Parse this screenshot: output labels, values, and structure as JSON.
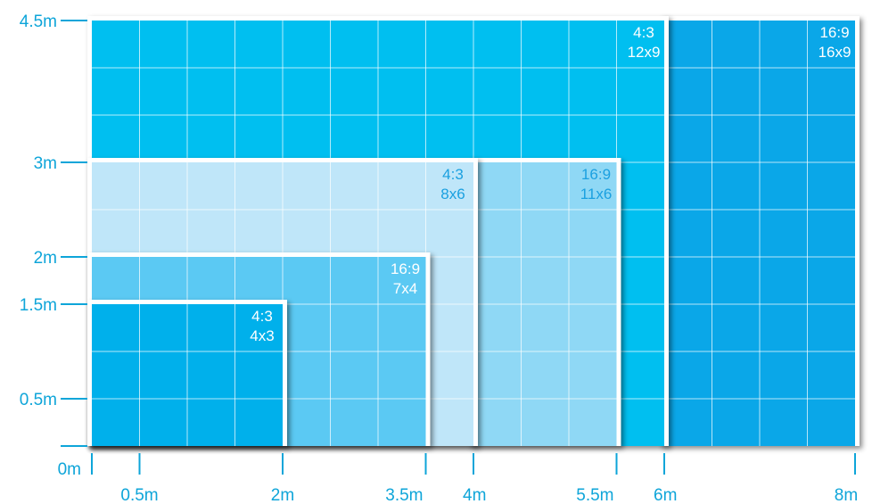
{
  "colors": {
    "axis": "#0ea5d9",
    "label_on_dark": "#ffffff",
    "label_on_light": "#1ba0e0",
    "grid": "#ffffff",
    "frame": "#ffffff"
  },
  "y_axis": {
    "ticks": [
      {
        "value": 4.5,
        "label": "4.5m"
      },
      {
        "value": 3,
        "label": "3m"
      },
      {
        "value": 2,
        "label": "2m"
      },
      {
        "value": 1.5,
        "label": "1.5m"
      },
      {
        "value": 0.5,
        "label": "0.5m"
      },
      {
        "value": 0,
        "label": ""
      }
    ],
    "origin_label": "0m"
  },
  "x_axis": {
    "ticks": [
      {
        "value": 0,
        "label": ""
      },
      {
        "value": 0.5,
        "label": "0.5m"
      },
      {
        "value": 2,
        "label": "2m"
      },
      {
        "value": 3.5,
        "label": "3.5m"
      },
      {
        "value": 4,
        "label": "4m"
      },
      {
        "value": 5.5,
        "label": "5.5m"
      },
      {
        "value": 6,
        "label": "6m"
      },
      {
        "value": 8,
        "label": "8m"
      }
    ]
  },
  "screens": [
    {
      "id": "16-9-16x9",
      "x0": 6,
      "x1": 8,
      "top": 4.5,
      "cols": 4,
      "rows": 9,
      "fill": "#0aa7e8",
      "ratio": "16:9",
      "grid": "16x9",
      "dark": true
    },
    {
      "id": "4-3-12x9",
      "x0": 0,
      "x1": 6,
      "top": 4.5,
      "cols": 12,
      "rows": 9,
      "fill": "#00bff0",
      "ratio": "4:3",
      "grid": "12x9",
      "dark": true
    },
    {
      "id": "16-9-11x6",
      "x0": 4,
      "x1": 5.5,
      "top": 3,
      "cols": 3,
      "rows": 6,
      "fill": "#8fd8f5",
      "ratio": "16:9",
      "grid": "11x6",
      "dark": false
    },
    {
      "id": "4-3-8x6",
      "x0": 0,
      "x1": 4,
      "top": 3,
      "cols": 8,
      "rows": 6,
      "fill": "#bfe6f9",
      "ratio": "4:3",
      "grid": "8x6",
      "dark": false
    },
    {
      "id": "16-9-7x4",
      "x0": 0,
      "x1": 3.5,
      "top": 2,
      "cols": 7,
      "rows": 4,
      "fill": "#5bc9f3",
      "ratio": "16:9",
      "grid": "7x4",
      "dark": true
    },
    {
      "id": "4-3-4x3",
      "x0": 0,
      "x1": 2,
      "top": 1.5,
      "cols": 4,
      "rows": 3,
      "fill": "#00b0eb",
      "ratio": "4:3",
      "grid": "4x3",
      "dark": true
    }
  ]
}
